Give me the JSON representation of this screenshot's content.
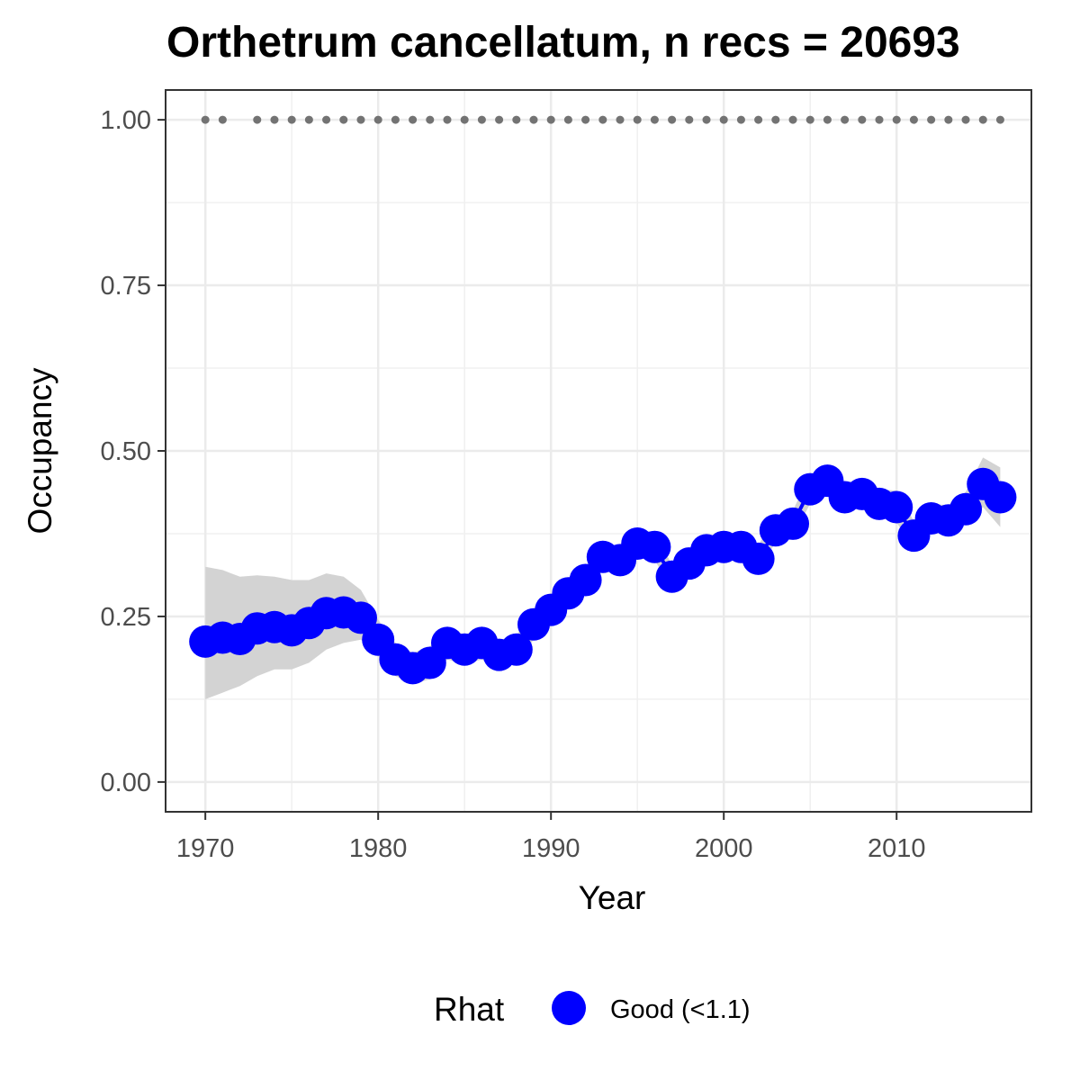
{
  "chart_data": {
    "type": "line",
    "title": "Orthetrum cancellatum, n recs = 20693",
    "xlabel": "Year",
    "ylabel": "Occupancy",
    "xlim": [
      1967.7,
      2017.8
    ],
    "ylim": [
      -0.045,
      1.045
    ],
    "x_ticks": [
      1970,
      1980,
      1990,
      2000,
      2010
    ],
    "x_tick_labels": [
      "1970",
      "1980",
      "1990",
      "2000",
      "2010"
    ],
    "y_ticks": [
      0.0,
      0.25,
      0.5,
      0.75,
      1.0
    ],
    "y_tick_labels": [
      "0.00",
      "0.25",
      "0.50",
      "0.75",
      "1.00"
    ],
    "grid": true,
    "series": [
      {
        "name": "Good (<1.1)",
        "color": "#0000ff",
        "x": [
          1970,
          1971,
          1972,
          1973,
          1974,
          1975,
          1976,
          1977,
          1978,
          1979,
          1980,
          1981,
          1982,
          1983,
          1984,
          1985,
          1986,
          1987,
          1988,
          1989,
          1990,
          1991,
          1992,
          1993,
          1994,
          1995,
          1996,
          1997,
          1998,
          1999,
          2000,
          2001,
          2002,
          2003,
          2004,
          2005,
          2006,
          2007,
          2008,
          2009,
          2010,
          2011,
          2012,
          2013,
          2014,
          2015,
          2016
        ],
        "y": [
          0.212,
          0.218,
          0.216,
          0.232,
          0.234,
          0.229,
          0.24,
          0.255,
          0.256,
          0.248,
          0.215,
          0.185,
          0.172,
          0.18,
          0.21,
          0.2,
          0.21,
          0.192,
          0.2,
          0.238,
          0.26,
          0.285,
          0.305,
          0.34,
          0.335,
          0.36,
          0.355,
          0.31,
          0.33,
          0.35,
          0.355,
          0.355,
          0.337,
          0.38,
          0.39,
          0.442,
          0.455,
          0.43,
          0.435,
          0.42,
          0.415,
          0.372,
          0.398,
          0.395,
          0.412,
          0.45,
          0.43
        ],
        "lower": [
          0.125,
          0.135,
          0.145,
          0.16,
          0.17,
          0.17,
          0.18,
          0.2,
          0.21,
          0.215,
          0.19,
          0.16,
          0.148,
          0.155,
          0.185,
          0.178,
          0.185,
          0.17,
          0.18,
          0.215,
          0.24,
          0.265,
          0.288,
          0.322,
          0.318,
          0.34,
          0.335,
          0.292,
          0.312,
          0.33,
          0.337,
          0.337,
          0.318,
          0.362,
          0.372,
          0.42,
          0.435,
          0.41,
          0.415,
          0.4,
          0.392,
          0.352,
          0.378,
          0.373,
          0.39,
          0.415,
          0.385
        ],
        "upper": [
          0.325,
          0.32,
          0.31,
          0.312,
          0.31,
          0.305,
          0.305,
          0.315,
          0.31,
          0.29,
          0.245,
          0.21,
          0.195,
          0.205,
          0.235,
          0.222,
          0.235,
          0.214,
          0.222,
          0.262,
          0.282,
          0.308,
          0.326,
          0.36,
          0.355,
          0.38,
          0.378,
          0.328,
          0.35,
          0.37,
          0.375,
          0.375,
          0.358,
          0.4,
          0.41,
          0.465,
          0.478,
          0.452,
          0.457,
          0.442,
          0.44,
          0.394,
          0.42,
          0.418,
          0.438,
          0.49,
          0.475
        ]
      }
    ],
    "reference_points": {
      "y": 1.0,
      "color": "#737373",
      "x": [
        1970,
        1971,
        1973,
        1974,
        1975,
        1976,
        1977,
        1978,
        1979,
        1980,
        1981,
        1982,
        1983,
        1984,
        1985,
        1986,
        1987,
        1988,
        1989,
        1990,
        1991,
        1992,
        1993,
        1994,
        1995,
        1996,
        1997,
        1998,
        1999,
        2000,
        2001,
        2002,
        2003,
        2004,
        2005,
        2006,
        2007,
        2008,
        2009,
        2010,
        2011,
        2012,
        2013,
        2014,
        2015,
        2016
      ]
    },
    "legend": {
      "title": "Rhat",
      "entries": [
        {
          "label": "Good (<1.1)",
          "color": "#0000ff"
        }
      ],
      "position": "bottom"
    },
    "ribbon_color": "#d3d3d3"
  }
}
